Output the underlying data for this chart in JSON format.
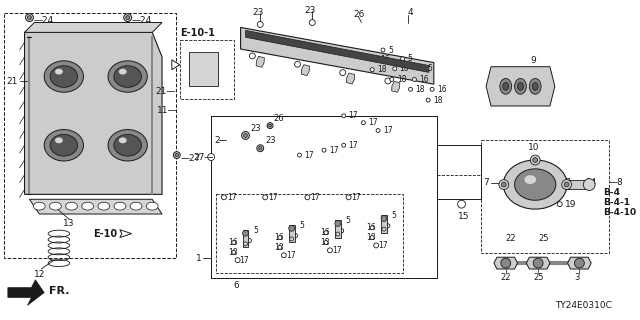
{
  "diagram_code": "TY24E0310C",
  "bg": "#f5f5f5",
  "lc": "#1a1a1a",
  "fig_w": 6.4,
  "fig_h": 3.2,
  "dpi": 100,
  "fr_label": "FR.",
  "ref_labels": {
    "E10": "E-10",
    "E101": "E-10-1",
    "B4": "B-4",
    "B41": "B-4-1",
    "B410": "B-4-10"
  }
}
